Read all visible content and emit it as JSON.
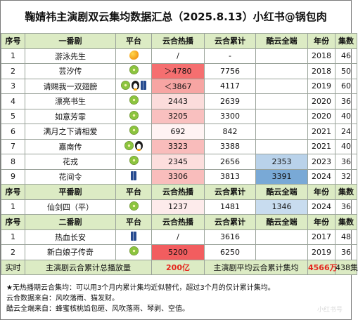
{
  "title": "鞠婧祎主演剧双云集均数据汇总（2025.8.13）小红书@锅包肉",
  "columns": {
    "idx": "序号",
    "ku_total": "酷云全端",
    "year": "年份",
    "episodes": "集数",
    "hot": "云合热播",
    "total": "云合累计",
    "platform": "平台"
  },
  "groups": [
    {
      "name": "一番剧",
      "rows": [
        {
          "idx": "1",
          "name": "游泳先生",
          "platforms": [
            "mango-icon"
          ],
          "hot": "/",
          "total": "-",
          "ku": "",
          "year": "2018",
          "ep": "46",
          "hot_bg": "#ffffff",
          "ku_bg": "#ffffff"
        },
        {
          "idx": "2",
          "name": "芸汐传",
          "platforms": [
            "kiwi-icon"
          ],
          "hot": "＞4780",
          "total": "7756",
          "ku": "",
          "year": "2018",
          "ep": "50",
          "hot_bg": "#f56f70",
          "ku_bg": "#ffffff"
        },
        {
          "idx": "3",
          "name": "请赐我一双翅膀",
          "platforms": [
            "kiwi-icon",
            "penguin-icon",
            "jeans-icon"
          ],
          "hot": "＜3867",
          "total": "4117",
          "ku": "",
          "year": "2019",
          "ep": "60",
          "hot_bg": "#f7a5a3",
          "ku_bg": "#ffffff"
        },
        {
          "idx": "4",
          "name": "漂亮书生",
          "platforms": [
            "kiwi-icon"
          ],
          "hot": "2443",
          "total": "2639",
          "ku": "",
          "year": "2020",
          "ep": "36",
          "hot_bg": "#fbdcdb",
          "ku_bg": "#ffffff"
        },
        {
          "idx": "5",
          "name": "如意芳霏",
          "platforms": [
            "kiwi-icon"
          ],
          "hot": "3205",
          "total": "3300",
          "ku": "",
          "year": "2020",
          "ep": "40",
          "hot_bg": "#f9c0bf",
          "ku_bg": "#ffffff"
        },
        {
          "idx": "6",
          "name": "满月之下请相爱",
          "platforms": [
            "kiwi-icon"
          ],
          "hot": "692",
          "total": "842",
          "ku": "",
          "year": "2021",
          "ep": "24",
          "hot_bg": "#fff3f3",
          "ku_bg": "#ffffff"
        },
        {
          "idx": "7",
          "name": "嘉南传",
          "platforms": [
            "kiwi-icon",
            "penguin-icon"
          ],
          "hot": "3323",
          "total": "3388",
          "ku": "",
          "year": "2021",
          "ep": "40",
          "hot_bg": "#f9bcbb",
          "ku_bg": "#ffffff"
        },
        {
          "idx": "8",
          "name": "花戎",
          "platforms": [
            "kiwi-icon"
          ],
          "hot": "2345",
          "total": "2656",
          "ku": "2353",
          "year": "2023",
          "ep": "36",
          "hot_bg": "#fcdedd",
          "ku_bg": "#b9d2ea"
        },
        {
          "idx": "9",
          "name": "花间令",
          "platforms": [
            "jeans-icon"
          ],
          "hot": "3306",
          "total": "3813",
          "ku": "3391",
          "year": "2024",
          "ep": "32",
          "hot_bg": "#f9bdbc",
          "ku_bg": "#79a9d6"
        }
      ]
    },
    {
      "name": "平番剧",
      "rows": [
        {
          "idx": "1",
          "name": "仙剑四（平）",
          "platforms": [
            "kiwi-icon"
          ],
          "hot": "1237",
          "total": "1481",
          "ku": "1346",
          "year": "2024",
          "ep": "36",
          "hot_bg": "#fdebeb",
          "ku_bg": "#c8dcef"
        }
      ]
    },
    {
      "name": "二番剧",
      "rows": [
        {
          "idx": "1",
          "name": "热血长安",
          "platforms": [
            "jeans-icon"
          ],
          "hot": "/",
          "total": "3616",
          "ku": "",
          "year": "2017",
          "ep": "48",
          "hot_bg": "#ffffff",
          "ku_bg": "#ffffff"
        },
        {
          "idx": "2",
          "name": "新白娘子传奇",
          "platforms": [
            "kiwi-icon"
          ],
          "hot": "5200",
          "total": "6250",
          "ku": "",
          "year": "2019",
          "ep": "36",
          "hot_bg": "#f25d5f",
          "ku_bg": "#ffffff"
        }
      ]
    }
  ],
  "summary": {
    "label": "实时",
    "left_text": "主演剧云合累计总播放量",
    "left_value": "200亿",
    "right_text": "主演剧平均云合累计集均",
    "right_value": "4566万",
    "episodes": "438集"
  },
  "notes": [
    "★无热播期云合集均：可以用3个月内累计集均近似替代，超过3个月的仅计累计集均。",
    "云合数据来自：风吹落雨、猫发财。",
    "酷云全端来自：蜂蜜核桃馅包砸、风吹落雨、琴剥、空值。"
  ],
  "watermark": "小红书号"
}
